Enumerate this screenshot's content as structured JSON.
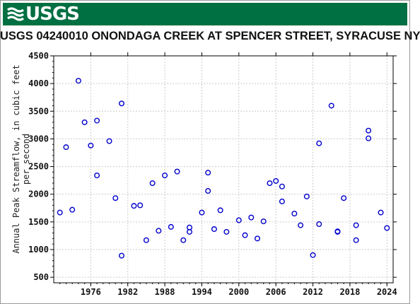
{
  "header": {
    "logo_text": "USGS",
    "brand_color": "#006f41"
  },
  "chart_data": {
    "type": "scatter",
    "title": "USGS 04240010 ONONDAGA CREEK AT SPENCER STREET, SYRACUSE NY",
    "xlabel": "",
    "ylabel_lines": [
      "Annual Peak Streamflow, in cubic feet",
      "per second"
    ],
    "xlim": [
      1970,
      2025
    ],
    "ylim": [
      400,
      4500
    ],
    "x_ticks": [
      1976,
      1982,
      1988,
      1994,
      2000,
      2006,
      2012,
      2018,
      2024
    ],
    "y_ticks": [
      500,
      1000,
      1500,
      2000,
      2500,
      3000,
      3500,
      4000,
      4500
    ],
    "grid": true,
    "marker_color": "#0000cc",
    "series": [
      {
        "points": [
          [
            1971,
            1670
          ],
          [
            1972,
            2850
          ],
          [
            1973,
            1720
          ],
          [
            1974,
            4050
          ],
          [
            1975,
            3300
          ],
          [
            1976,
            2880
          ],
          [
            1977,
            2340
          ],
          [
            1977,
            3330
          ],
          [
            1979,
            2960
          ],
          [
            1980,
            1930
          ],
          [
            1981,
            890
          ],
          [
            1981,
            3640
          ],
          [
            1983,
            1790
          ],
          [
            1984,
            1800
          ],
          [
            1985,
            1170
          ],
          [
            1986,
            2200
          ],
          [
            1987,
            1340
          ],
          [
            1988,
            2340
          ],
          [
            1989,
            1410
          ],
          [
            1990,
            2410
          ],
          [
            1991,
            1170
          ],
          [
            1992,
            1400
          ],
          [
            1992,
            1320
          ],
          [
            1994,
            1670
          ],
          [
            1995,
            2060
          ],
          [
            1995,
            2390
          ],
          [
            1996,
            1370
          ],
          [
            1997,
            1710
          ],
          [
            1998,
            1320
          ],
          [
            2000,
            1530
          ],
          [
            2001,
            1260
          ],
          [
            2002,
            1580
          ],
          [
            2003,
            1200
          ],
          [
            2004,
            1510
          ],
          [
            2005,
            2200
          ],
          [
            2006,
            2240
          ],
          [
            2007,
            2140
          ],
          [
            2007,
            1870
          ],
          [
            2009,
            1650
          ],
          [
            2010,
            1440
          ],
          [
            2011,
            1960
          ],
          [
            2012,
            900
          ],
          [
            2013,
            1460
          ],
          [
            2013,
            2920
          ],
          [
            2015,
            3600
          ],
          [
            2016,
            1330
          ],
          [
            2016,
            1320
          ],
          [
            2017,
            1930
          ],
          [
            2019,
            1170
          ],
          [
            2019,
            1440
          ],
          [
            2021,
            3150
          ],
          [
            2021,
            3010
          ],
          [
            2023,
            1670
          ],
          [
            2024,
            1390
          ]
        ]
      }
    ]
  }
}
